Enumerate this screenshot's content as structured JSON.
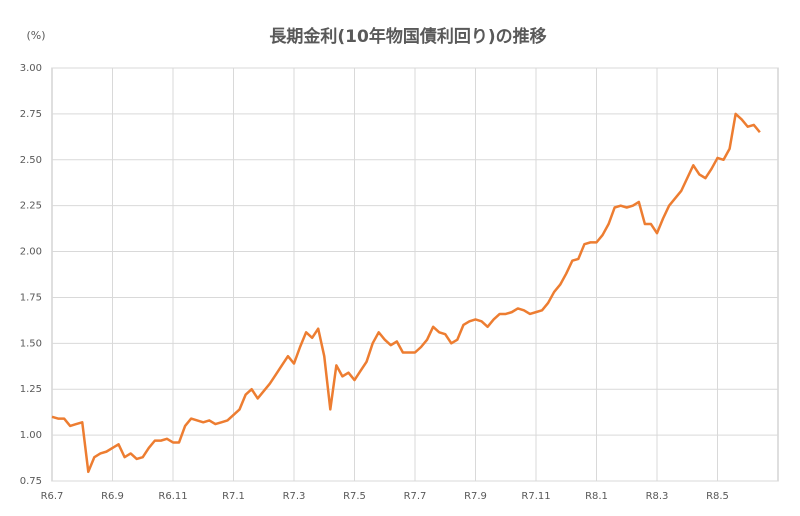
{
  "chart_data": {
    "type": "line",
    "title": "長期金利(10年物国債利回り)の推移",
    "y_unit": "(%)",
    "categories": [
      "R6.7",
      null,
      null,
      null,
      null,
      null,
      null,
      null,
      null,
      null,
      "R6.9",
      null,
      null,
      null,
      null,
      null,
      null,
      null,
      null,
      null,
      "R6.11",
      null,
      null,
      null,
      null,
      null,
      null,
      null,
      null,
      null,
      "R7.1",
      null,
      null,
      null,
      null,
      null,
      null,
      null,
      null,
      null,
      "R7.3",
      null,
      null,
      null,
      null,
      null,
      null,
      null,
      null,
      null,
      "R7.5",
      null,
      null,
      null,
      null,
      null,
      null,
      null,
      null,
      null,
      "R7.7",
      null,
      null,
      null,
      null,
      null,
      null,
      null,
      null,
      null,
      "R7.9",
      null,
      null,
      null,
      null,
      null,
      null,
      null,
      null,
      null,
      "R7.11",
      null,
      null,
      null,
      null,
      null,
      null,
      null,
      null,
      null,
      "R8.1",
      null,
      null,
      null,
      null,
      null,
      null,
      null,
      null,
      null,
      "R8.3",
      null,
      null,
      null,
      null,
      null,
      null,
      null,
      null,
      null,
      "R8.5",
      null,
      null,
      null,
      null,
      null,
      null,
      null
    ],
    "series": [
      {
        "color": "#ED7D31",
        "values": [
          1.1,
          1.09,
          1.09,
          1.05,
          1.06,
          1.07,
          0.8,
          0.88,
          0.9,
          0.91,
          0.93,
          0.95,
          0.88,
          0.9,
          0.87,
          0.88,
          0.93,
          0.97,
          0.97,
          0.98,
          0.96,
          0.96,
          1.05,
          1.09,
          1.08,
          1.07,
          1.08,
          1.06,
          1.07,
          1.08,
          1.11,
          1.14,
          1.22,
          1.25,
          1.2,
          1.24,
          1.28,
          1.33,
          1.38,
          1.43,
          1.39,
          1.48,
          1.56,
          1.53,
          1.58,
          1.43,
          1.14,
          1.38,
          1.32,
          1.34,
          1.3,
          1.35,
          1.4,
          1.5,
          1.56,
          1.52,
          1.49,
          1.51,
          1.45,
          1.45,
          1.45,
          1.48,
          1.52,
          1.59,
          1.56,
          1.55,
          1.5,
          1.52,
          1.6,
          1.62,
          1.63,
          1.62,
          1.59,
          1.63,
          1.66,
          1.66,
          1.67,
          1.69,
          1.68,
          1.66,
          1.67,
          1.68,
          1.72,
          1.78,
          1.82,
          1.88,
          1.95,
          1.96,
          2.04,
          2.05,
          2.05,
          2.09,
          2.15,
          2.24,
          2.25,
          2.24,
          2.25,
          2.27,
          2.15,
          2.15,
          2.1,
          2.18,
          2.25,
          2.29,
          2.33,
          2.4,
          2.47,
          2.42,
          2.4,
          2.45,
          2.51,
          2.5,
          2.56,
          2.75,
          2.72,
          2.68,
          2.69,
          2.65
        ]
      }
    ],
    "ylim": [
      0.75,
      3.0
    ],
    "yticks": [
      0.75,
      {
        "value": 1,
        "label": "1.00"
      },
      1.25,
      {
        "value": 1.5,
        "label": "1.50"
      },
      1.75,
      {
        "value": 2,
        "label": "2.00"
      },
      2.25,
      {
        "value": 2.5,
        "label": "2.50"
      },
      2.75,
      {
        "value": 3,
        "label": "3.00"
      }
    ],
    "grid": true
  }
}
